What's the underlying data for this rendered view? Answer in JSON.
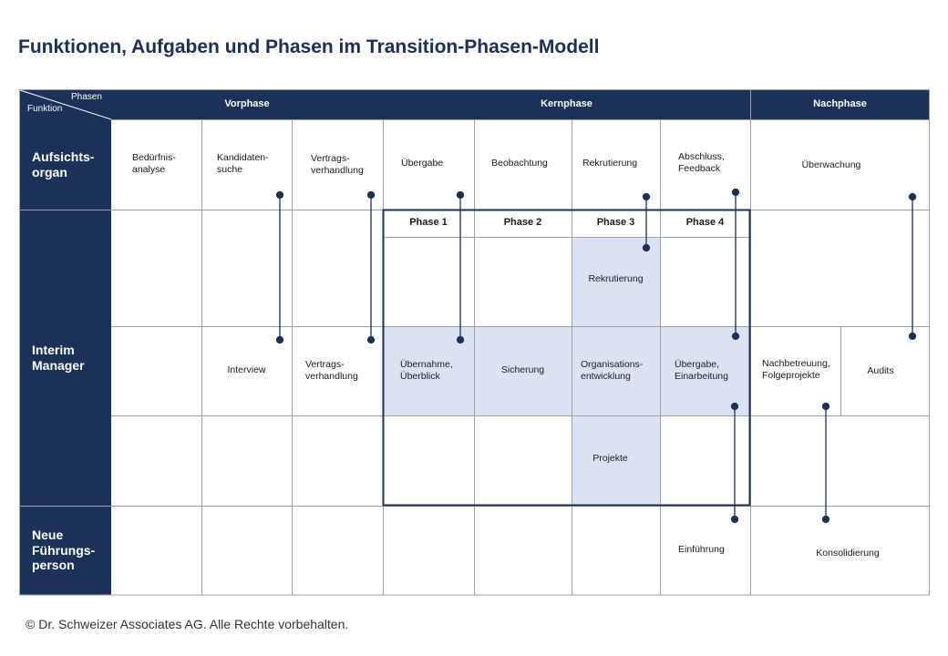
{
  "title": "Funktionen, Aufgaben und Phasen im Transition-Phasen-Modell",
  "corner": {
    "top": "Phasen",
    "bottom": "Funktion"
  },
  "phases": {
    "vor": "Vorphase",
    "kern": "Kernphase",
    "nach": "Nachphase"
  },
  "functions": {
    "ao": "Aufsichts-\norgan",
    "im": "Interim\nManager",
    "nf": "Neue\nFührungs-\nperson"
  },
  "ao_tasks": {
    "t1": "Bedürfnis-\nanalyse",
    "t2": "Kandidaten-\nsuche",
    "t3": "Vertrags-\nverhandlung",
    "t4": "Übergabe",
    "t5": "Beobachtung",
    "t6": "Rekrutierung",
    "t7": "Abschluss,\nFeedback",
    "t8": "Überwachung"
  },
  "kern_sub": {
    "p1": "Phase 1",
    "p2": "Phase 2",
    "p3": "Phase 3",
    "p4": "Phase 4"
  },
  "im_tasks": {
    "rekrutierung": "Rekrutierung",
    "interview": "Interview",
    "vertrag": "Vertrags-\nverhandlung",
    "uebernahme": "Übernahme,\nÜberblick",
    "sicherung": "Sicherung",
    "orga": "Organisations-\nentwicklung",
    "uebergabe": "Übergabe,\nEinarbeitung",
    "nachbetreuung": "Nachbetreuung,\nFolgeprojekte",
    "audits": "Audits",
    "projekte": "Projekte"
  },
  "nf_tasks": {
    "einfuehrung": "Einführung",
    "konsolidierung": "Konsolidierung"
  },
  "footer": "© Dr. Schweizer Associates AG. Alle Rechte vorbehalten.",
  "colors": {
    "navy": "#1b3158",
    "shade": "#dbe3f3",
    "grid": "#9a9fa8",
    "dot": "#1b3158"
  }
}
